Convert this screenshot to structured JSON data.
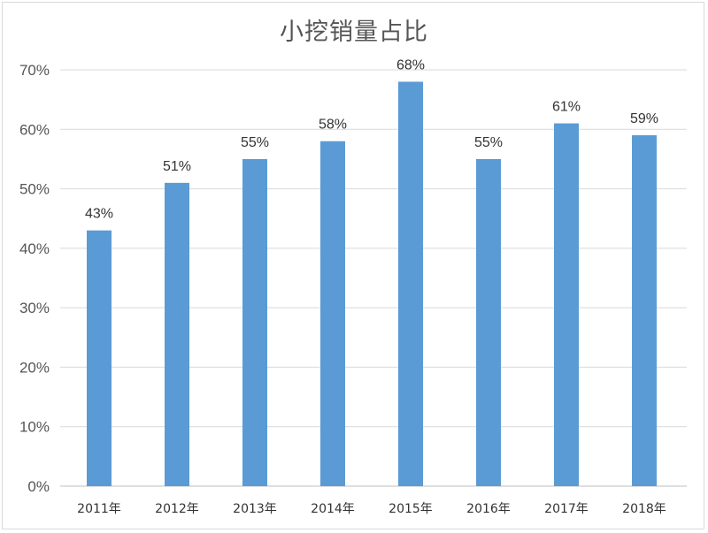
{
  "chart_data": {
    "type": "bar",
    "title": "小挖销量占比",
    "categories": [
      "2011年",
      "2012年",
      "2013年",
      "2014年",
      "2015年",
      "2016年",
      "2017年",
      "2018年"
    ],
    "values": [
      43,
      51,
      55,
      58,
      68,
      55,
      61,
      59
    ],
    "data_labels": [
      "43%",
      "51%",
      "55%",
      "58%",
      "68%",
      "55%",
      "61%",
      "59%"
    ],
    "y_ticks": [
      "0%",
      "10%",
      "20%",
      "30%",
      "40%",
      "50%",
      "60%",
      "70%"
    ],
    "ylim": [
      0,
      70
    ],
    "xlabel": "",
    "ylabel": "",
    "grid": true,
    "legend": "none",
    "bar_color": "#5b9bd5",
    "grid_color": "#d9d9d9"
  }
}
